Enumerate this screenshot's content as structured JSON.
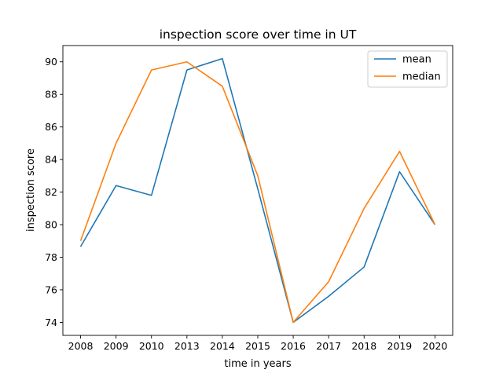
{
  "chart_data": {
    "type": "line",
    "title": "inspection score over time in UT",
    "xlabel": "time in years",
    "ylabel": "inspection score",
    "categories": [
      "2008",
      "2009",
      "2010",
      "2013",
      "2014",
      "2015",
      "2016",
      "2017",
      "2018",
      "2019",
      "2020"
    ],
    "series": [
      {
        "name": "mean",
        "color": "#1f77b4",
        "values": [
          78.65,
          82.4,
          81.8,
          89.5,
          90.2,
          82.2,
          74.0,
          75.6,
          77.4,
          83.25,
          80.0
        ]
      },
      {
        "name": "median",
        "color": "#ff7f0e",
        "values": [
          79.0,
          85.0,
          89.5,
          90.0,
          88.5,
          83.0,
          74.0,
          76.5,
          81.0,
          84.5,
          80.0
        ]
      }
    ],
    "ylim": [
      73.2,
      91.0
    ],
    "yticks": [
      74,
      76,
      78,
      80,
      82,
      84,
      86,
      88,
      90
    ],
    "grid": false,
    "legend_position": "top-right"
  }
}
